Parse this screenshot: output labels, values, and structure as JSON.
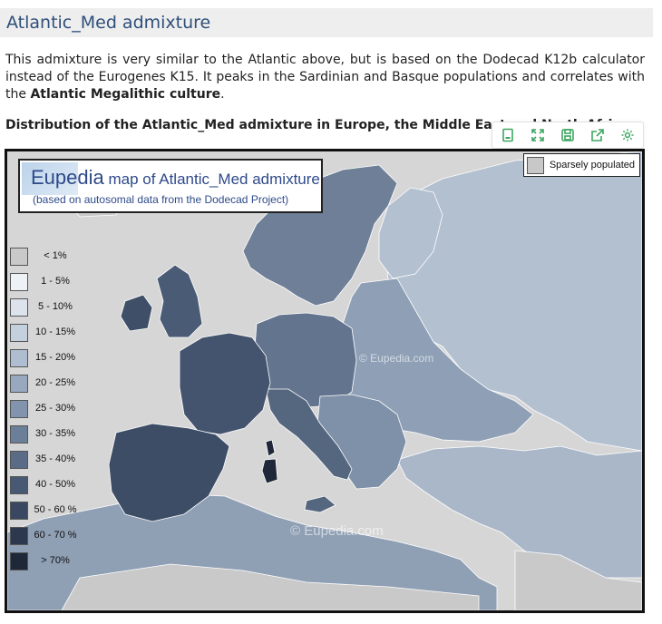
{
  "section": {
    "title": "Atlantic_Med admixture"
  },
  "intro": {
    "part1": "This admixture is very similar to the Atlantic above, but is based on the Dodecad K12b calculator instead of the Eurogenes K15. It peaks in the Sardinian and Basque populations and correlates with the ",
    "bold": "Atlantic Megalithic culture",
    "part2": "."
  },
  "caption": "Distribution of the Atlantic_Med admixture in Europe, the Middle East and North Africa",
  "toolbar": {
    "buttons": [
      {
        "name": "bookmark-icon"
      },
      {
        "name": "fullscreen-icon"
      },
      {
        "name": "save-icon"
      },
      {
        "name": "share-icon"
      },
      {
        "name": "settings-icon"
      }
    ]
  },
  "map": {
    "title_brand": "Eupedia",
    "title_rest": " map of Atlantic_Med admixture",
    "subtitle": "(based on autosomal data from the Dodecad Project)",
    "sparse_label": "Sparsely populated",
    "sparse_color": "#c8c8c8",
    "watermark": "© Eupedia.com",
    "legend": [
      {
        "label": "< 1%",
        "color": "#c9c9c9"
      },
      {
        "label": "1 - 5%",
        "color": "#eef1f5"
      },
      {
        "label": "5 - 10%",
        "color": "#dce3ec"
      },
      {
        "label": "10 - 15%",
        "color": "#c4d0de"
      },
      {
        "label": "15 - 20%",
        "color": "#aebdd0"
      },
      {
        "label": "20 - 25%",
        "color": "#98a9bf"
      },
      {
        "label": "25 - 30%",
        "color": "#8294ad"
      },
      {
        "label": "30 - 35%",
        "color": "#6c7f99"
      },
      {
        "label": "35 - 40%",
        "color": "#596b86"
      },
      {
        "label": "40 - 50%",
        "color": "#485973"
      },
      {
        "label": "50 - 60 %",
        "color": "#394860"
      },
      {
        "label": "60 - 70 %",
        "color": "#2b384d"
      },
      {
        "label": "> 70%",
        "color": "#1e2838"
      }
    ],
    "colors": {
      "sea": "#d6d6d6",
      "iberia": "#3d4d66",
      "france": "#44546e",
      "britain": "#4a5b75",
      "ireland": "#3f4f68",
      "scandinavia": "#6e7f97",
      "germany": "#63748e",
      "italy": "#55667f",
      "sardinia": "#1e2838",
      "eastern_europe": "#8fa0b6",
      "russia": "#b3c0d0",
      "balkans": "#7f91a8",
      "north_africa": "#8f9fb4",
      "middle_east": "#a9b7c9",
      "sparse": "#c9c9c9"
    }
  }
}
